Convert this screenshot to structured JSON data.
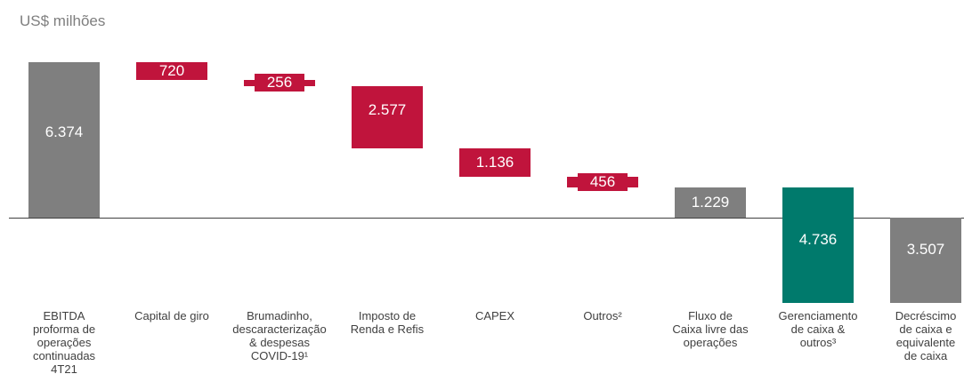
{
  "chart_data": {
    "type": "waterfall",
    "title": "US$ milhões",
    "categories": [
      "EBITDA\nproforma de\noperações\ncontinuadas\n4T21",
      "Capital de giro",
      "Brumadinho,\ndescaracterização\n& despesas\nCOVID-19¹",
      "Imposto de\nRenda e Refis",
      "CAPEX",
      "Outros²",
      "Fluxo de\nCaixa livre das\noperações",
      "Gerenciamento\nde caixa &\noutros³",
      "Decréscimo\nde caixa e\nequivalente\nde caixa"
    ],
    "values": [
      6374,
      -720,
      -256,
      -2577,
      -1136,
      -456,
      1229,
      -4736,
      -3507
    ],
    "value_labels": [
      "6.374",
      "720",
      "256",
      "2.577",
      "1.136",
      "456",
      "1.229",
      "4.736",
      "3.507"
    ],
    "measure": [
      "relative",
      "relative",
      "relative",
      "relative",
      "relative",
      "relative",
      "total",
      "relative",
      "total"
    ],
    "colors": [
      "#7f7f7f",
      "#c0143c",
      "#c0143c",
      "#c0143c",
      "#c0143c",
      "#c0143c",
      "#7f7f7f",
      "#007a6c",
      "#7f7f7f"
    ]
  }
}
